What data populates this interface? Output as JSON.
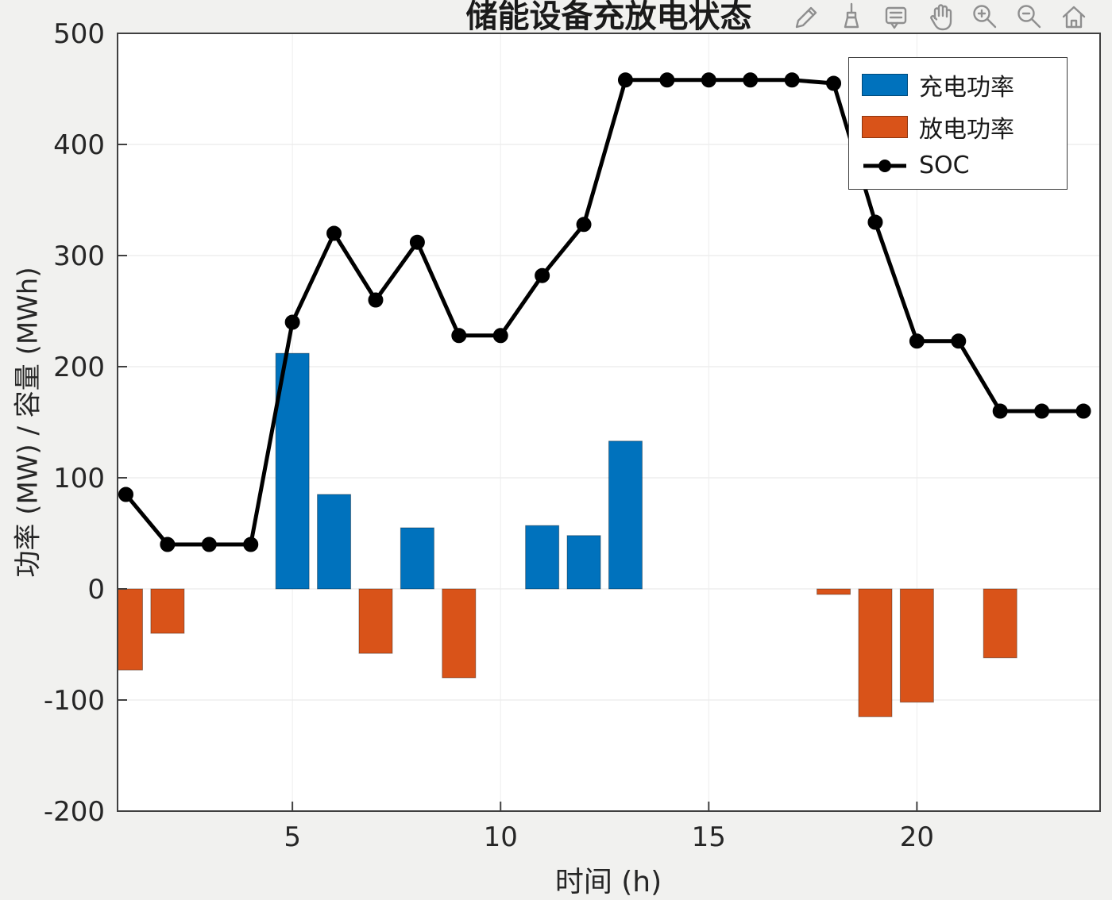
{
  "chart_data": {
    "type": "bar",
    "title": "储能设备充放电状态",
    "xlabel": "时间 (h)",
    "ylabel": "功率 (MW) / 容量 (MWh)",
    "xlim": [
      0.8,
      24.4
    ],
    "ylim": [
      -200,
      500
    ],
    "xticks": [
      5,
      10,
      15,
      20
    ],
    "yticks": [
      500,
      400,
      300,
      200,
      100,
      0,
      -100,
      -200
    ],
    "grid": true,
    "legend_position": "top-right",
    "hours": [
      1,
      2,
      3,
      4,
      5,
      6,
      7,
      8,
      9,
      10,
      11,
      12,
      13,
      14,
      15,
      16,
      17,
      18,
      19,
      20,
      21,
      22,
      23,
      24
    ],
    "series": [
      {
        "name": "充电功率",
        "type": "bar",
        "color": "#0072BD",
        "values": [
          0,
          0,
          0,
          0,
          212,
          85,
          0,
          55,
          0,
          0,
          57,
          48,
          133,
          0,
          0,
          0,
          0,
          0,
          0,
          0,
          0,
          0,
          0,
          0
        ]
      },
      {
        "name": "放电功率",
        "type": "bar",
        "color": "#D95319",
        "values": [
          -73,
          -40,
          0,
          0,
          0,
          0,
          -58,
          0,
          -80,
          0,
          0,
          0,
          0,
          0,
          0,
          0,
          0,
          -5,
          -115,
          -102,
          0,
          -62,
          0,
          0
        ]
      },
      {
        "name": "SOC",
        "type": "line",
        "color": "#000000",
        "marker": "circle",
        "values": [
          85,
          40,
          40,
          40,
          240,
          320,
          260,
          312,
          228,
          228,
          282,
          328,
          458,
          458,
          458,
          458,
          458,
          455,
          330,
          223,
          223,
          160,
          160,
          160
        ]
      }
    ]
  },
  "toolbar": {
    "icons": [
      {
        "name": "edit-plot-icon"
      },
      {
        "name": "brush-icon"
      },
      {
        "name": "datatips-icon"
      },
      {
        "name": "pan-icon"
      },
      {
        "name": "zoom-in-icon"
      },
      {
        "name": "zoom-out-icon"
      },
      {
        "name": "home-icon"
      }
    ]
  }
}
